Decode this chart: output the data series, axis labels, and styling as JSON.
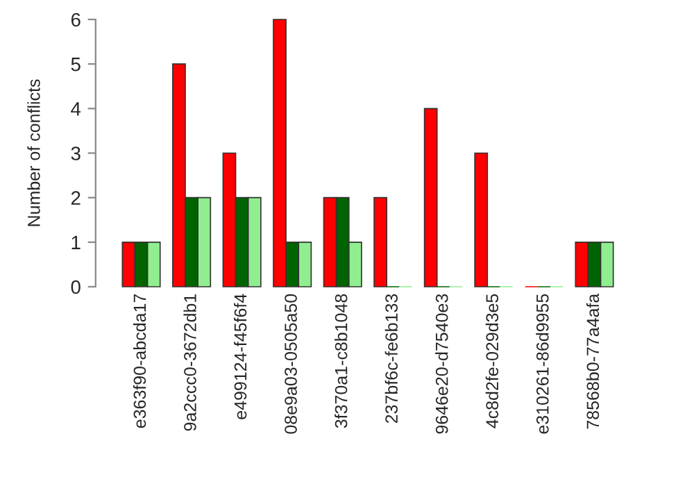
{
  "chart_data": {
    "type": "bar",
    "ylabel": "Number of conflicts",
    "categories": [
      "e363f90-abcda17",
      "9a2ccc0-3672db1",
      "e499124-f45f6f4",
      "08e9a03-0505a50",
      "3f370a1-c8b1048",
      "237bf6c-fe6b133",
      "9646e20-d7540e3",
      "4c8d2fe-029d3e5",
      "e310261-86d9955",
      "78568b0-77a4afa"
    ],
    "series": [
      {
        "color": "#ff0000",
        "values": [
          1,
          5,
          3,
          6,
          2,
          2,
          4,
          3,
          0,
          1
        ]
      },
      {
        "color": "#006400",
        "values": [
          1,
          2,
          2,
          1,
          2,
          0,
          0,
          0,
          0,
          1
        ]
      },
      {
        "color": "#90ee90",
        "values": [
          1,
          2,
          2,
          1,
          1,
          0,
          0,
          0,
          0,
          1
        ]
      }
    ],
    "ylim": [
      0,
      6
    ],
    "yticks": [
      0,
      1,
      2,
      3,
      4,
      5,
      6
    ],
    "grid": false,
    "legend": false
  }
}
